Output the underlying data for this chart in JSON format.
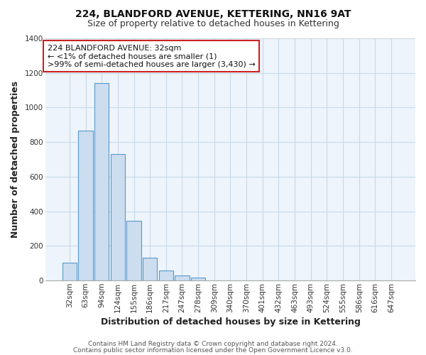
{
  "title": "224, BLANDFORD AVENUE, KETTERING, NN16 9AT",
  "subtitle": "Size of property relative to detached houses in Kettering",
  "xlabel": "Distribution of detached houses by size in Kettering",
  "ylabel": "Number of detached properties",
  "bar_labels": [
    "32sqm",
    "63sqm",
    "94sqm",
    "124sqm",
    "155sqm",
    "186sqm",
    "217sqm",
    "247sqm",
    "278sqm",
    "309sqm",
    "340sqm",
    "370sqm",
    "401sqm",
    "432sqm",
    "463sqm",
    "493sqm",
    "524sqm",
    "555sqm",
    "586sqm",
    "616sqm",
    "647sqm"
  ],
  "bar_values": [
    105,
    865,
    1140,
    730,
    345,
    130,
    60,
    30,
    18,
    0,
    0,
    0,
    0,
    0,
    0,
    0,
    0,
    0,
    0,
    0,
    0
  ],
  "bar_color": "#ccddf0",
  "bar_edge_color": "#5599cc",
  "ylim": [
    0,
    1400
  ],
  "yticks": [
    0,
    200,
    400,
    600,
    800,
    1000,
    1200,
    1400
  ],
  "annotation_line1": "224 BLANDFORD AVENUE: 32sqm",
  "annotation_line2": "← <1% of detached houses are smaller (1)",
  "annotation_line3": ">99% of semi-detached houses are larger (3,430) →",
  "footer_line1": "Contains HM Land Registry data © Crown copyright and database right 2024.",
  "footer_line2": "Contains public sector information licensed under the Open Government Licence v3.0.",
  "background_color": "#ffffff",
  "plot_bg_color": "#eef4fb",
  "grid_color": "#c8d8e8",
  "title_fontsize": 10,
  "subtitle_fontsize": 9,
  "axis_label_fontsize": 9,
  "tick_fontsize": 7.5,
  "annotation_fontsize": 8,
  "footer_fontsize": 6.5
}
